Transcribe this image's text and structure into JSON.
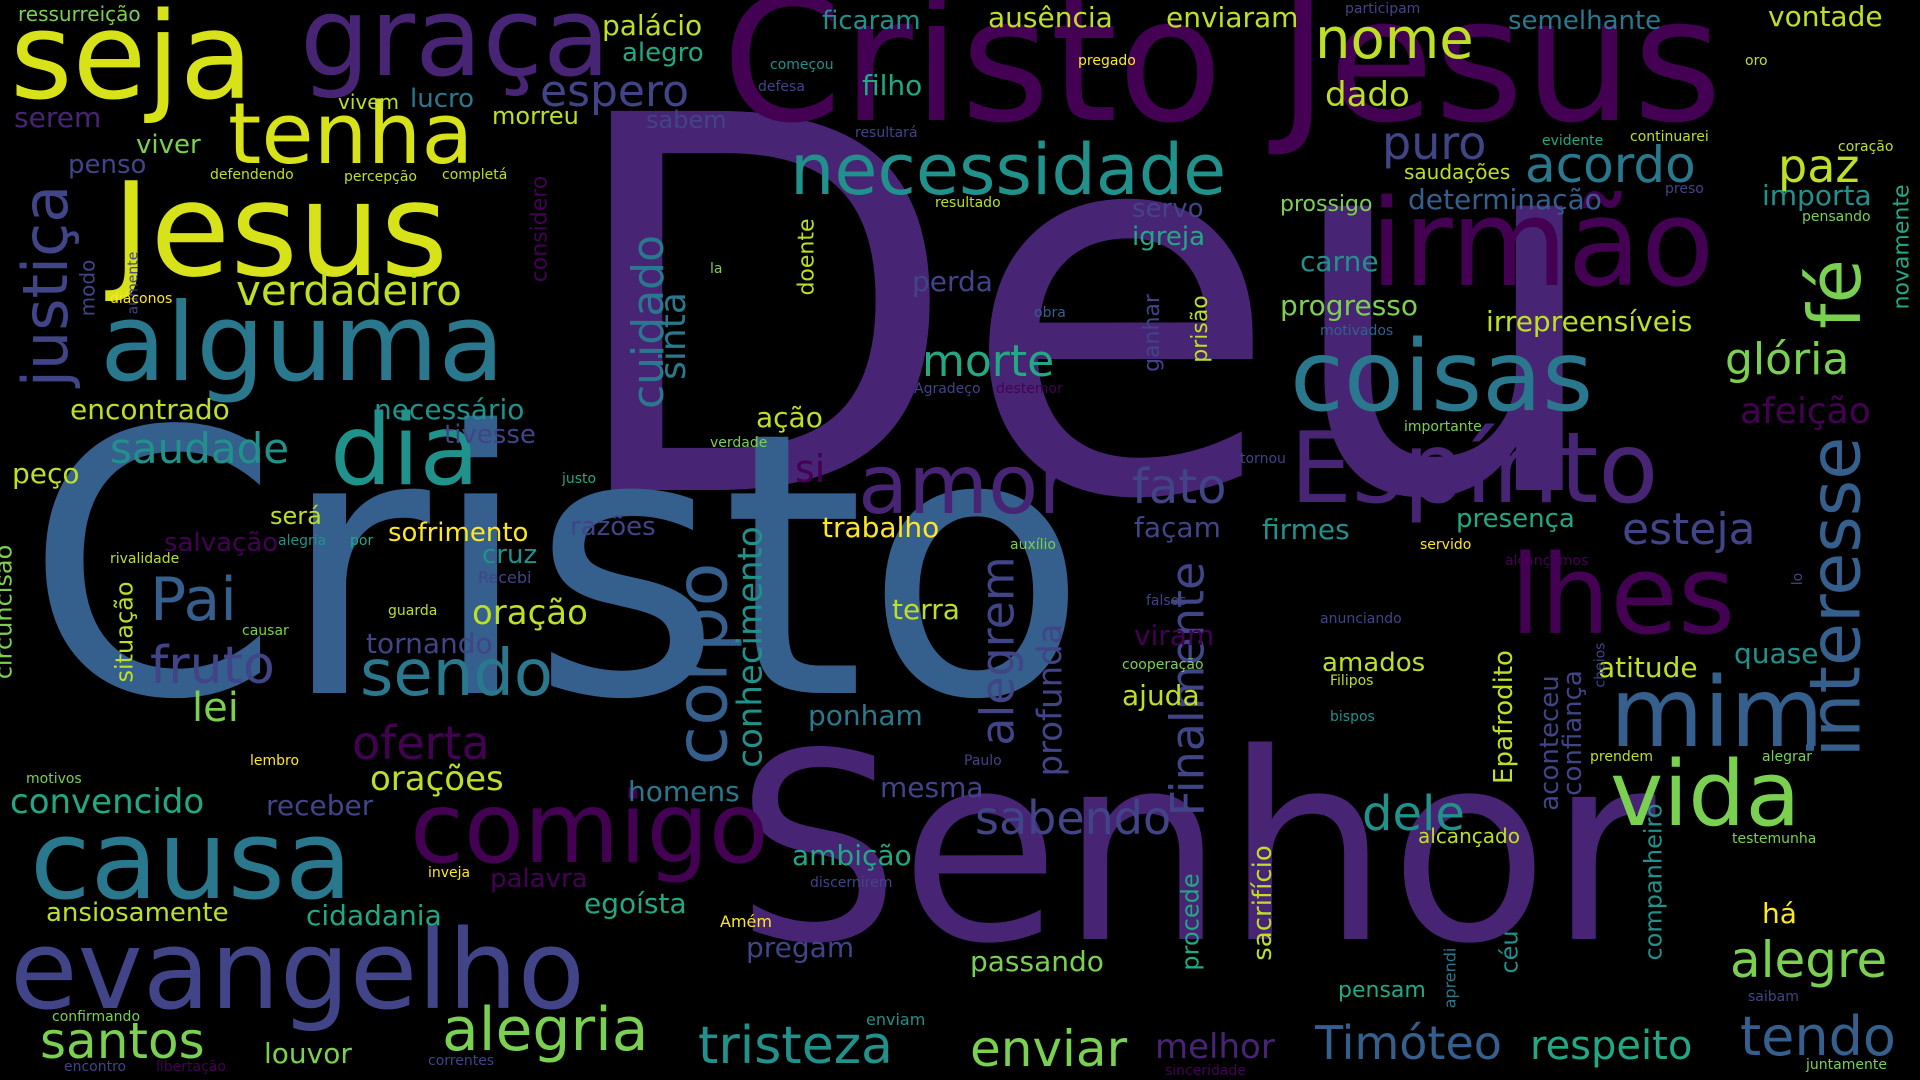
{
  "palette": {
    "background": "#000000",
    "colors": [
      "#440154",
      "#482475",
      "#414487",
      "#355f8d",
      "#2a788e",
      "#21918c",
      "#22a884",
      "#44bf70",
      "#7ad151",
      "#bddf26",
      "#fde725"
    ]
  },
  "words": [
    {
      "text": "Deu",
      "color": "#482475"
    },
    {
      "text": "Cristo",
      "color": "#355f8d"
    },
    {
      "text": "Senhor",
      "color": "#482475"
    },
    {
      "text": "Cristo Jesus",
      "color": "#440154"
    },
    {
      "text": "Jesus",
      "color": "#d8e219"
    },
    {
      "text": "seja",
      "color": "#d8e219"
    },
    {
      "text": "graça",
      "color": "#482475"
    },
    {
      "text": "tenha",
      "color": "#d8e219"
    },
    {
      "text": "alguma",
      "color": "#2a788e"
    },
    {
      "text": "necessidade",
      "color": "#21918c"
    },
    {
      "text": "irmão",
      "color": "#440154"
    },
    {
      "text": "coisas",
      "color": "#2a788e"
    },
    {
      "text": "Espírito",
      "color": "#482475"
    },
    {
      "text": "dia",
      "color": "#21918c"
    },
    {
      "text": "amor",
      "color": "#482475"
    },
    {
      "text": "causa",
      "color": "#2a788e"
    },
    {
      "text": "evangelho",
      "color": "#414487"
    },
    {
      "text": "comigo",
      "color": "#440154"
    },
    {
      "text": "lhes",
      "color": "#440154"
    },
    {
      "text": "mim",
      "color": "#355f8d"
    },
    {
      "text": "vida",
      "color": "#7ad151"
    },
    {
      "text": "interesse",
      "color": "#355f8d"
    },
    {
      "text": "corpo",
      "color": "#355f8d"
    },
    {
      "text": "sendo",
      "color": "#2a788e"
    },
    {
      "text": "alegria",
      "color": "#7ad151"
    },
    {
      "text": "tristeza",
      "color": "#21918c"
    },
    {
      "text": "enviar",
      "color": "#7ad151"
    },
    {
      "text": "Timóteo",
      "color": "#355f8d"
    },
    {
      "text": "respeito",
      "color": "#22a884"
    },
    {
      "text": "tendo",
      "color": "#355f8d"
    },
    {
      "text": "alegre",
      "color": "#7ad151"
    },
    {
      "text": "santos",
      "color": "#7ad151"
    },
    {
      "text": "justiça",
      "color": "#414487"
    },
    {
      "text": "fé",
      "color": "#7ad151"
    },
    {
      "text": "Pai",
      "color": "#355f8d"
    },
    {
      "text": "fruto",
      "color": "#414487"
    },
    {
      "text": "nome",
      "color": "#bddf26"
    },
    {
      "text": "Finalmente",
      "color": "#414487"
    },
    {
      "text": "alegrem",
      "color": "#414487"
    },
    {
      "text": "sabendo",
      "color": "#414487"
    },
    {
      "text": "oferta",
      "color": "#440154"
    },
    {
      "text": "dele",
      "color": "#21918c"
    },
    {
      "text": "fato",
      "color": "#414487"
    },
    {
      "text": "esteja",
      "color": "#414487"
    },
    {
      "text": "acordo",
      "color": "#2a788e"
    },
    {
      "text": "paz",
      "color": "#bddf26"
    },
    {
      "text": "puro",
      "color": "#414487"
    },
    {
      "text": "cuidado",
      "color": "#2a788e"
    },
    {
      "text": "sinta",
      "color": "#2a788e"
    },
    {
      "text": "morte",
      "color": "#22a884"
    },
    {
      "text": "glória",
      "color": "#7ad151"
    },
    {
      "text": "verdadeiro",
      "color": "#bddf26"
    },
    {
      "text": "saudade",
      "color": "#21918c"
    },
    {
      "text": "conhecimento",
      "color": "#21918c"
    },
    {
      "text": "profunda",
      "color": "#414487"
    },
    {
      "text": "orações",
      "color": "#bddf26"
    },
    {
      "text": "convencido",
      "color": "#22a884"
    },
    {
      "text": "oração",
      "color": "#bddf26"
    },
    {
      "text": "melhor",
      "color": "#482475"
    },
    {
      "text": "afeição",
      "color": "#440154"
    },
    {
      "text": "espero",
      "color": "#414487"
    },
    {
      "text": "lei",
      "color": "#7ad151"
    },
    {
      "text": "si",
      "color": "#440154"
    },
    {
      "text": "ficaram",
      "color": "#21918c"
    },
    {
      "text": "ausência",
      "color": "#bddf26"
    },
    {
      "text": "enviaram",
      "color": "#bddf26"
    },
    {
      "text": "vontade",
      "color": "#bddf26"
    },
    {
      "text": "palácio",
      "color": "#bddf26"
    },
    {
      "text": "alegro",
      "color": "#22a884"
    },
    {
      "text": "filho",
      "color": "#22a884"
    },
    {
      "text": "dado",
      "color": "#bddf26"
    },
    {
      "text": "semelhante",
      "color": "#2a788e"
    },
    {
      "text": "ressurreição",
      "color": "#7ad151"
    },
    {
      "text": "serem",
      "color": "#482475"
    },
    {
      "text": "viver",
      "color": "#7ad151"
    },
    {
      "text": "lucro",
      "color": "#2a788e"
    },
    {
      "text": "morreu",
      "color": "#bddf26"
    },
    {
      "text": "sabem",
      "color": "#414487"
    },
    {
      "text": "vivem",
      "color": "#bddf26"
    },
    {
      "text": "penso",
      "color": "#414487"
    },
    {
      "text": "servo",
      "color": "#414487"
    },
    {
      "text": "igreja",
      "color": "#22a884"
    },
    {
      "text": "prossigo",
      "color": "#7ad151"
    },
    {
      "text": "determinação",
      "color": "#355f8d"
    },
    {
      "text": "saudações",
      "color": "#bddf26"
    },
    {
      "text": "importa",
      "color": "#21918c"
    },
    {
      "text": "carne",
      "color": "#21918c"
    },
    {
      "text": "progresso",
      "color": "#7ad151"
    },
    {
      "text": "irrepreensíveis",
      "color": "#bddf26"
    },
    {
      "text": "perda",
      "color": "#414487"
    },
    {
      "text": "encontrado",
      "color": "#bddf26"
    },
    {
      "text": "necessário",
      "color": "#21918c"
    },
    {
      "text": "tivesse",
      "color": "#414487"
    },
    {
      "text": "ação",
      "color": "#bddf26"
    },
    {
      "text": "peço",
      "color": "#bddf26"
    },
    {
      "text": "será",
      "color": "#bddf26"
    },
    {
      "text": "salvação",
      "color": "#440154"
    },
    {
      "text": "sofrimento",
      "color": "#fde725"
    },
    {
      "text": "razões",
      "color": "#414487"
    },
    {
      "text": "cruz",
      "color": "#21918c"
    },
    {
      "text": "trabalho",
      "color": "#fde725"
    },
    {
      "text": "façam",
      "color": "#414487"
    },
    {
      "text": "firmes",
      "color": "#21918c"
    },
    {
      "text": "presença",
      "color": "#22a884"
    },
    {
      "text": "terra",
      "color": "#bddf26"
    },
    {
      "text": "viram",
      "color": "#440154"
    },
    {
      "text": "tornando",
      "color": "#414487"
    },
    {
      "text": "amados",
      "color": "#bddf26"
    },
    {
      "text": "atitude",
      "color": "#bddf26"
    },
    {
      "text": "quase",
      "color": "#21918c"
    },
    {
      "text": "ajuda",
      "color": "#bddf26"
    },
    {
      "text": "ponham",
      "color": "#2a788e"
    },
    {
      "text": "homens",
      "color": "#2a788e"
    },
    {
      "text": "mesma",
      "color": "#414487"
    },
    {
      "text": "receber",
      "color": "#414487"
    },
    {
      "text": "ambição",
      "color": "#22a884"
    },
    {
      "text": "cidadania",
      "color": "#22a884"
    },
    {
      "text": "palavra",
      "color": "#440154"
    },
    {
      "text": "egoísta",
      "color": "#22a884"
    },
    {
      "text": "ansiosamente",
      "color": "#bddf26"
    },
    {
      "text": "pregam",
      "color": "#414487"
    },
    {
      "text": "passando",
      "color": "#7ad151"
    },
    {
      "text": "louvor",
      "color": "#7ad151"
    },
    {
      "text": "há",
      "color": "#fde725"
    },
    {
      "text": "pensam",
      "color": "#22a884"
    },
    {
      "text": "alcançado",
      "color": "#bddf26"
    },
    {
      "text": "Epafrodito",
      "color": "#bddf26"
    },
    {
      "text": "confiança",
      "color": "#414487"
    },
    {
      "text": "aconteceu",
      "color": "#414487"
    },
    {
      "text": "companheiro",
      "color": "#21918c"
    },
    {
      "text": "sacrifício",
      "color": "#bddf26"
    },
    {
      "text": "procede",
      "color": "#22a884"
    },
    {
      "text": "céu",
      "color": "#21918c"
    },
    {
      "text": "circuncisão",
      "color": "#7ad151"
    },
    {
      "text": "situação",
      "color": "#bddf26"
    },
    {
      "text": "novamente",
      "color": "#22a884"
    },
    {
      "text": "considero",
      "color": "#440154"
    },
    {
      "text": "doente",
      "color": "#bddf26"
    },
    {
      "text": "ganhar",
      "color": "#414487"
    },
    {
      "text": "prisão",
      "color": "#bddf26"
    },
    {
      "text": "modo",
      "color": "#414487"
    },
    {
      "text": "aprendi",
      "color": "#2a788e"
    },
    {
      "text": "participam",
      "color": "#414487"
    },
    {
      "text": "começou",
      "color": "#21918c"
    },
    {
      "text": "pregado",
      "color": "#fde725"
    },
    {
      "text": "oro",
      "color": "#bddf26"
    },
    {
      "text": "defesa",
      "color": "#414487"
    },
    {
      "text": "resultará",
      "color": "#414487"
    },
    {
      "text": "evidente",
      "color": "#22a884"
    },
    {
      "text": "continuarei",
      "color": "#bddf26"
    },
    {
      "text": "coração",
      "color": "#bddf26"
    },
    {
      "text": "defendendo",
      "color": "#bddf26"
    },
    {
      "text": "percepção",
      "color": "#bddf26"
    },
    {
      "text": "completá",
      "color": "#bddf26"
    },
    {
      "text": "resultado",
      "color": "#bddf26"
    },
    {
      "text": "preso",
      "color": "#414487"
    },
    {
      "text": "pensando",
      "color": "#7ad151"
    },
    {
      "text": "aumente",
      "color": "#414487"
    },
    {
      "text": "la",
      "color": "#7ad151"
    },
    {
      "text": "diáconos",
      "color": "#fde725"
    },
    {
      "text": "obra",
      "color": "#355f8d"
    },
    {
      "text": "motivados",
      "color": "#355f8d"
    },
    {
      "text": "Agradeço",
      "color": "#414487"
    },
    {
      "text": "destemor",
      "color": "#440154"
    },
    {
      "text": "importante",
      "color": "#7ad151"
    },
    {
      "text": "verdade",
      "color": "#7ad151"
    },
    {
      "text": "tornou",
      "color": "#414487"
    },
    {
      "text": "justo",
      "color": "#22a884"
    },
    {
      "text": "alegria",
      "color": "#21918c"
    },
    {
      "text": "por",
      "color": "#22a884"
    },
    {
      "text": "rivalidade",
      "color": "#bddf26"
    },
    {
      "text": "Recebi",
      "color": "#414487"
    },
    {
      "text": "auxílio",
      "color": "#7ad151"
    },
    {
      "text": "servido",
      "color": "#fde725"
    },
    {
      "text": "alcançamos",
      "color": "#440154"
    },
    {
      "text": "lo",
      "color": "#414487"
    },
    {
      "text": "guarda",
      "color": "#bddf26"
    },
    {
      "text": "causar",
      "color": "#7ad151"
    },
    {
      "text": "falsos",
      "color": "#414487"
    },
    {
      "text": "anunciando",
      "color": "#414487"
    },
    {
      "text": "cooperação",
      "color": "#7ad151"
    },
    {
      "text": "cheios",
      "color": "#414487"
    },
    {
      "text": "Filipos",
      "color": "#bddf26"
    },
    {
      "text": "bispos",
      "color": "#21918c"
    },
    {
      "text": "lembro",
      "color": "#fde725"
    },
    {
      "text": "Paulo",
      "color": "#414487"
    },
    {
      "text": "prendem",
      "color": "#bddf26"
    },
    {
      "text": "alegrar",
      "color": "#7ad151"
    },
    {
      "text": "motivos",
      "color": "#7ad151"
    },
    {
      "text": "inveja",
      "color": "#fde725"
    },
    {
      "text": "discernirem",
      "color": "#414487"
    },
    {
      "text": "testemunha",
      "color": "#7ad151"
    },
    {
      "text": "Amém",
      "color": "#fde725"
    },
    {
      "text": "confirmando",
      "color": "#7ad151"
    },
    {
      "text": "enviam",
      "color": "#21918c"
    },
    {
      "text": "saibam",
      "color": "#414487"
    },
    {
      "text": "encontro",
      "color": "#414487"
    },
    {
      "text": "libertação",
      "color": "#440154"
    },
    {
      "text": "correntes",
      "color": "#414487"
    },
    {
      "text": "sinceridade",
      "color": "#440154"
    },
    {
      "text": "juntamente",
      "color": "#7ad151"
    }
  ]
}
